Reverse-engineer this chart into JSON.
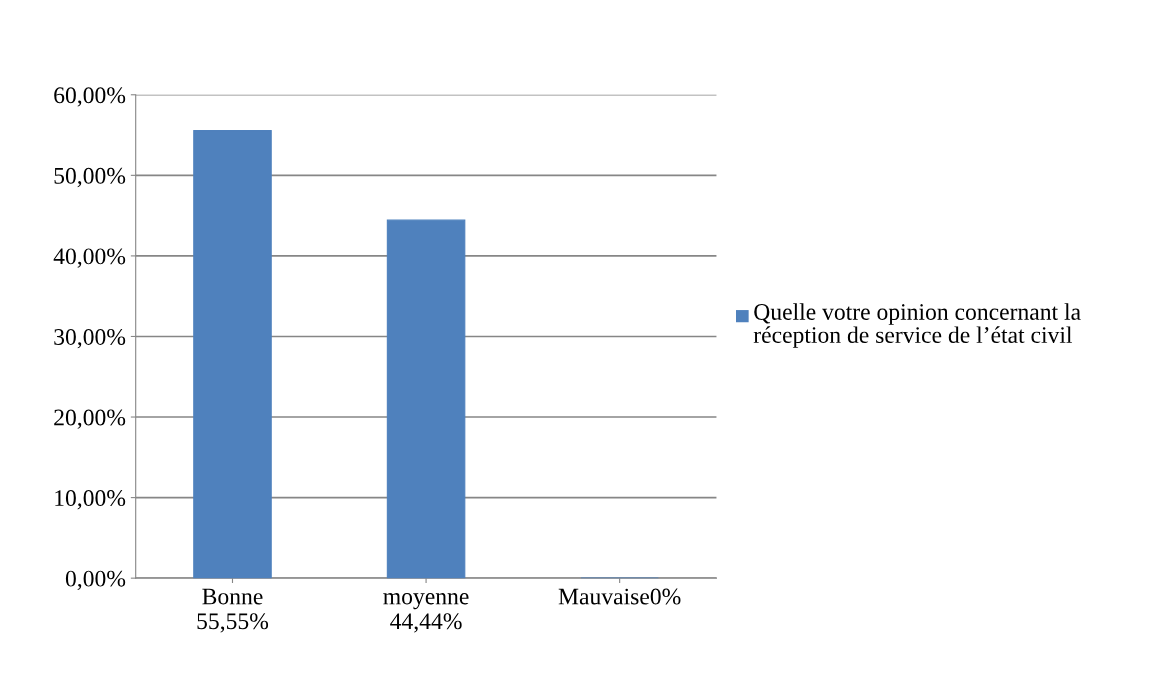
{
  "chart_data": {
    "type": "bar",
    "categories": [
      "Bonne\n55,55%",
      "moyenne\n44,44%",
      "Mauvaise0%"
    ],
    "series": [
      {
        "name": "Quelle votre opinion concernant la réception de service de l’état civil",
        "color": "#4f81bd",
        "values": [
          55.55,
          44.44,
          0
        ]
      }
    ],
    "ylim": [
      0,
      60
    ],
    "yticks": [
      {
        "value": 0,
        "label": "0,00%"
      },
      {
        "value": 10,
        "label": "10,00%"
      },
      {
        "value": 20,
        "label": "20,00%"
      },
      {
        "value": 30,
        "label": "30,00%"
      },
      {
        "value": 40,
        "label": "40,00%"
      },
      {
        "value": 50,
        "label": "50,00%"
      },
      {
        "value": 60,
        "label": "60,00%"
      }
    ],
    "grid": "y",
    "legend": "right"
  }
}
